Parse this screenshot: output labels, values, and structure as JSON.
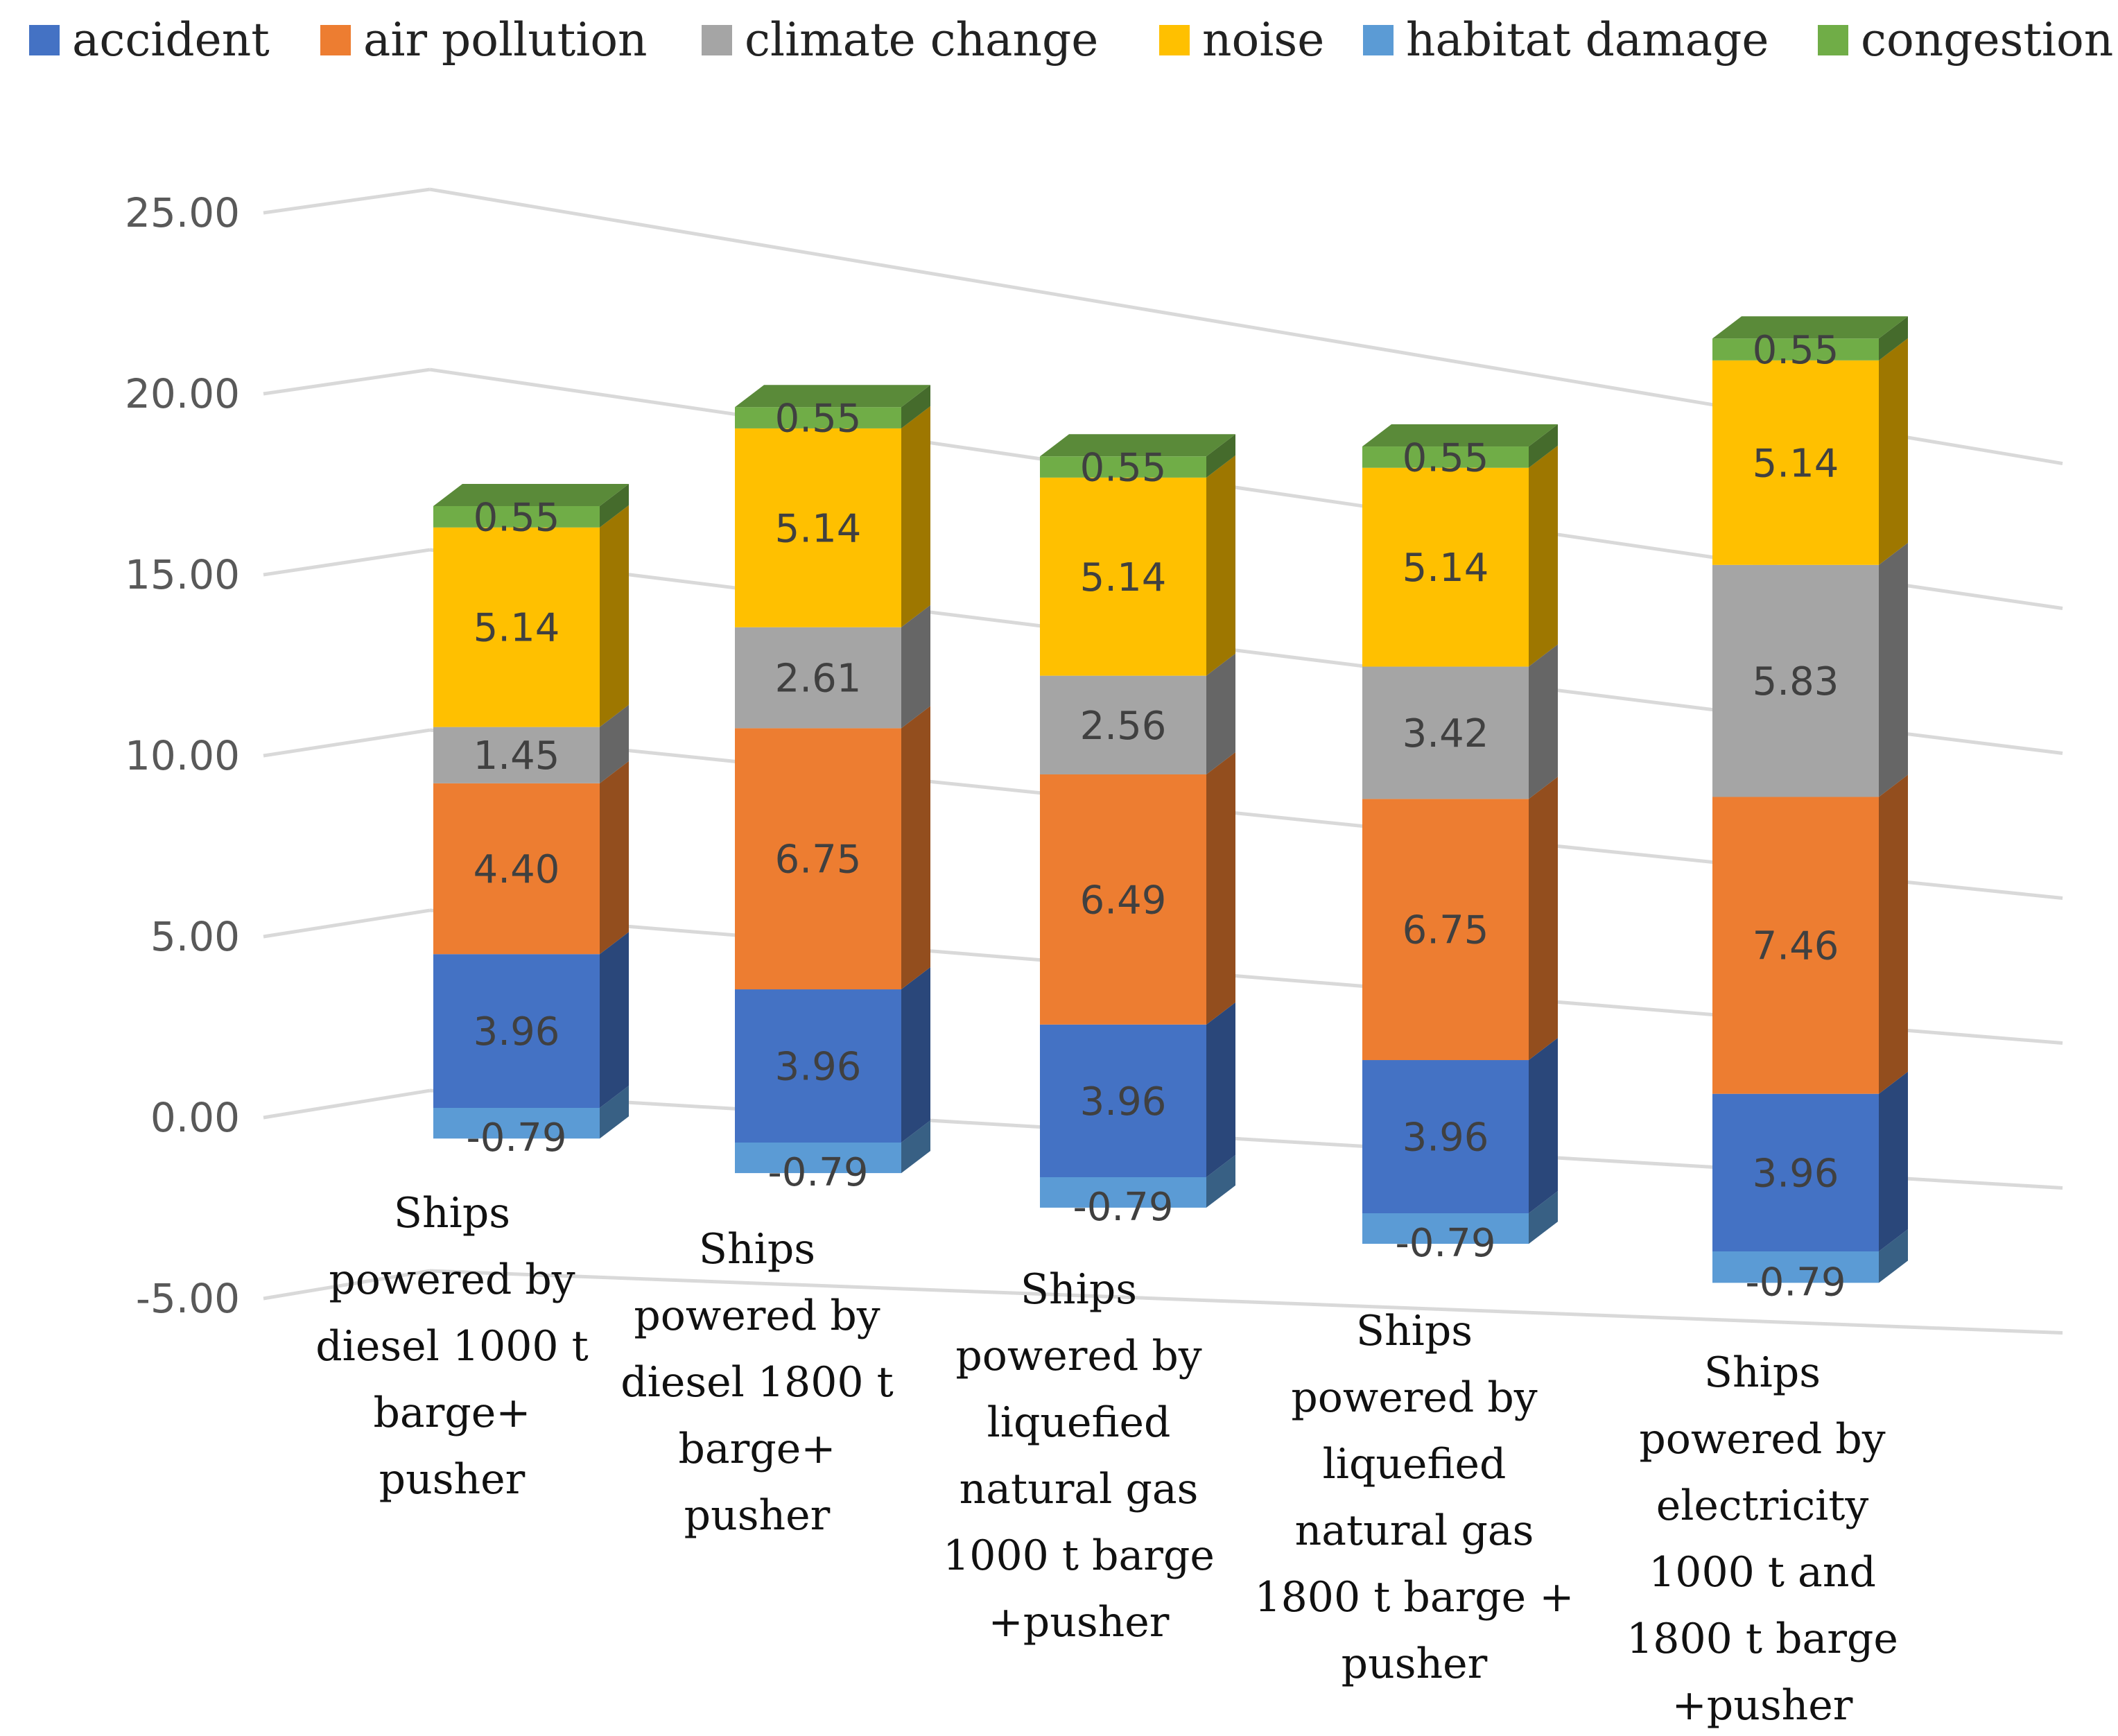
{
  "chart_data": {
    "type": "bar",
    "subtype": "stacked-3d-column",
    "title": "",
    "xlabel": "",
    "ylabel": "",
    "ylim": [
      -5,
      25
    ],
    "yticks": [
      "-5.00",
      "0.00",
      "5.00",
      "10.00",
      "15.00",
      "20.00",
      "25.00"
    ],
    "legend_position": "top",
    "categories": [
      [
        "Ships",
        "powered by",
        "diesel 1000 t",
        "barge+",
        "pusher"
      ],
      [
        "Ships",
        "powered by",
        "diesel 1800 t",
        "barge+",
        "pusher"
      ],
      [
        "Ships",
        "powered by",
        "liquefied",
        "natural gas",
        "1000 t barge",
        "+pusher"
      ],
      [
        "Ships",
        "powered by",
        "liquefied",
        "natural gas",
        "1800 t barge +",
        "pusher"
      ],
      [
        "Ships",
        "powered by",
        "electricity",
        "1000 t and",
        "1800 t barge",
        "+pusher"
      ]
    ],
    "series": [
      {
        "name": "habitat damage",
        "color": "#5b9bd5",
        "values": [
          -0.79,
          -0.79,
          -0.79,
          -0.79,
          -0.79
        ],
        "labels": [
          "-0.79",
          "-0.79",
          "-0.79",
          "-0.79",
          "-0.79"
        ]
      },
      {
        "name": "accident",
        "color": "#4472c4",
        "values": [
          3.96,
          3.96,
          3.96,
          3.96,
          3.96
        ],
        "labels": [
          "3.96",
          "3.96",
          "3.96",
          "3.96",
          "3.96"
        ]
      },
      {
        "name": "air pollution",
        "color": "#ed7d31",
        "values": [
          4.4,
          6.75,
          6.49,
          6.75,
          7.46
        ],
        "labels": [
          "4.40",
          "6.75",
          "6.49",
          "6.75",
          "7.46"
        ]
      },
      {
        "name": "climate change",
        "color": "#a5a5a5",
        "values": [
          1.45,
          2.61,
          2.56,
          3.42,
          5.83
        ],
        "labels": [
          "1.45",
          "2.61",
          "2.56",
          "3.42",
          "5.83"
        ]
      },
      {
        "name": "noise",
        "color": "#ffc000",
        "values": [
          5.14,
          5.14,
          5.14,
          5.14,
          5.14
        ],
        "labels": [
          "5.14",
          "5.14",
          "5.14",
          "5.14",
          "5.14"
        ]
      },
      {
        "name": "congestion",
        "color": "#70ad47",
        "values": [
          0.55,
          0.55,
          0.55,
          0.55,
          0.55
        ],
        "labels": [
          "0.55",
          "0.55",
          "0.55",
          "0.55",
          "0.55"
        ]
      }
    ],
    "legend": [
      {
        "name": "accident",
        "color": "#4472c4"
      },
      {
        "name": "air pollution",
        "color": "#ed7d31"
      },
      {
        "name": "climate change",
        "color": "#a5a5a5"
      },
      {
        "name": "noise",
        "color": "#ffc000"
      },
      {
        "name": "habitat damage",
        "color": "#5b9bd5"
      },
      {
        "name": "congestion",
        "color": "#70ad47"
      }
    ]
  }
}
